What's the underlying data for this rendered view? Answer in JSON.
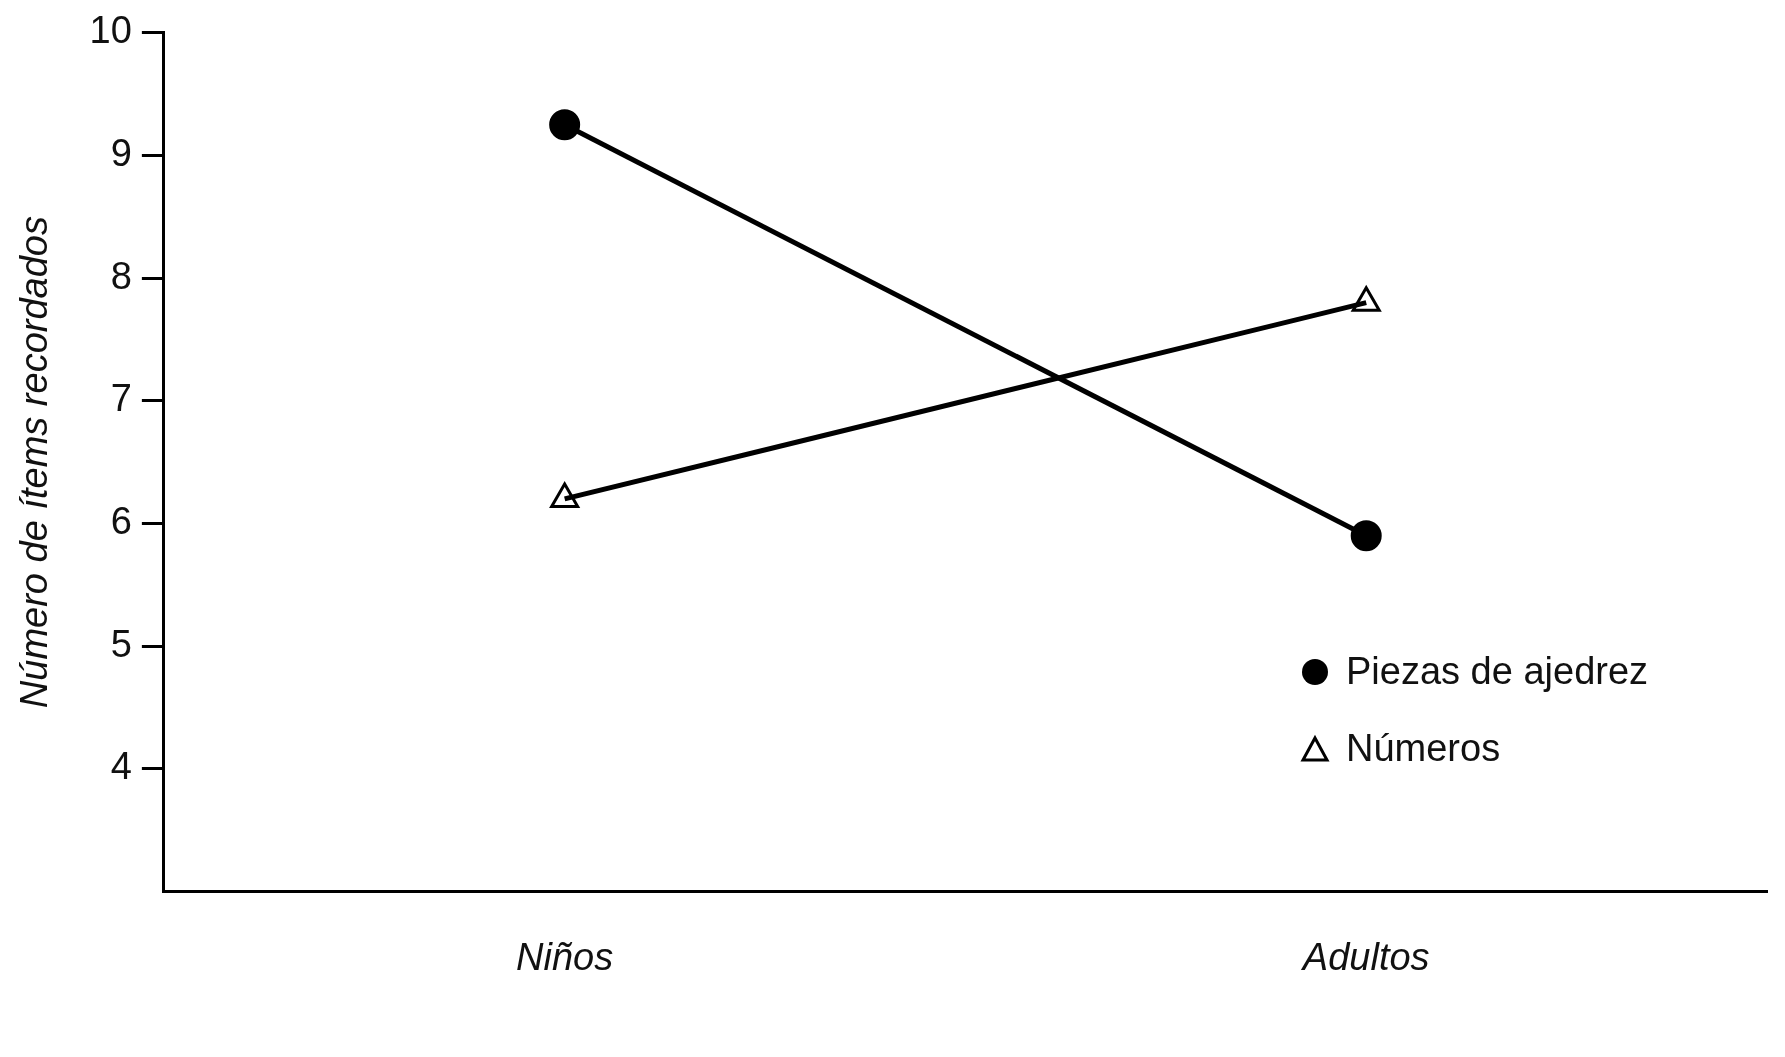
{
  "chart_data": {
    "type": "line",
    "ylabel": "Número de ítems recordados",
    "categories": [
      "Niños",
      "Adultos"
    ],
    "series": [
      {
        "name": "Piezas de ajedrez",
        "color": "#000000",
        "marker": "circle",
        "values": [
          9.25,
          5.9
        ]
      },
      {
        "name": "Números",
        "color": "#000000",
        "marker": "triangle",
        "values": [
          6.2,
          7.8
        ]
      }
    ],
    "ylim": [
      3,
      10
    ],
    "yticks": [
      4,
      5,
      6,
      7,
      8,
      9,
      10
    ],
    "grid": false,
    "legend": "right",
    "line_style": "solid"
  }
}
